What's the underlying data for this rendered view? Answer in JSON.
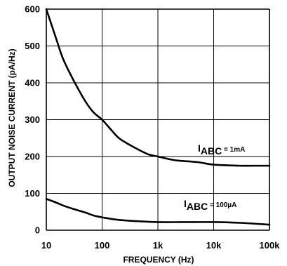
{
  "chart_data": {
    "type": "line",
    "xlabel": "FREQUENCY (Hz)",
    "ylabel": "OUTPUT NOISE CURRENT (pA/Hz)",
    "x_scale": "log",
    "xlim": [
      10,
      100000
    ],
    "ylim": [
      0,
      600
    ],
    "x_ticks": [
      "10",
      "100",
      "1k",
      "10k",
      "100k"
    ],
    "y_ticks": [
      "0",
      "100",
      "200",
      "300",
      "400",
      "500",
      "600"
    ],
    "grid": true,
    "series": [
      {
        "name": "IABC = 1mA",
        "x": [
          10,
          15,
          20,
          30,
          50,
          70,
          100,
          150,
          200,
          300,
          500,
          700,
          1000,
          2000,
          5000,
          10000,
          30000,
          50000,
          100000
        ],
        "y": [
          600,
          520,
          465,
          410,
          350,
          320,
          300,
          270,
          250,
          233,
          215,
          205,
          200,
          190,
          185,
          178,
          175,
          175,
          175
        ]
      },
      {
        "name": "IABC = 100µA",
        "x": [
          10,
          15,
          20,
          30,
          50,
          70,
          100,
          200,
          500,
          1000,
          3000,
          10000,
          30000,
          100000
        ],
        "y": [
          85,
          75,
          67,
          58,
          48,
          40,
          35,
          28,
          24,
          22,
          22,
          22,
          20,
          15
        ]
      }
    ],
    "annotations": [
      {
        "main": "I",
        "sub": "ABC",
        "value": " = 1mA"
      },
      {
        "main": "I",
        "sub": "ABC",
        "value": " = 100µA"
      }
    ]
  }
}
